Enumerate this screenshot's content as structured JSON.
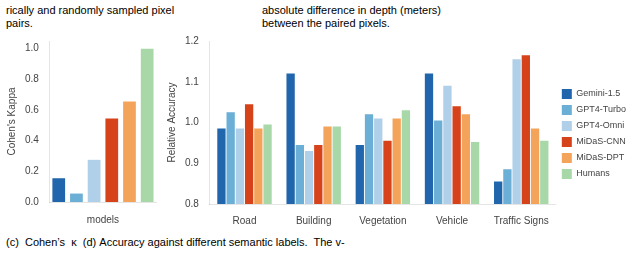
{
  "chart_data": [
    {
      "type": "bar",
      "categories": [
        "Gemini-1.5",
        "GPT4-Turbo",
        "GPT4-Omni",
        "MiDaS-CNN",
        "MiDaS-DPT",
        "Humans"
      ],
      "values": [
        0.155,
        0.055,
        0.275,
        0.545,
        0.655,
        1.0
      ],
      "colors": [
        "#2166ac",
        "#6baed6",
        "#b0cfe8",
        "#d6431a",
        "#f4a45a",
        "#a8d8a8"
      ],
      "xlabel": "models",
      "ylabel": "Cohen's Kappa",
      "ylim": [
        0.0,
        1.05
      ],
      "yticks": [
        {
          "value": 0.0,
          "label": "0.0"
        },
        0.2,
        0.4,
        0.6,
        0.8,
        {
          "value": 1.0,
          "label": "1.0"
        }
      ],
      "tick_labels": "y",
      "grid": false
    },
    {
      "type": "bar",
      "categories": [
        "Road",
        "Building",
        "Vegetation",
        "Vehicle",
        "Traffic Signs"
      ],
      "series": [
        {
          "name": "Gemini-1.5",
          "color": "#2166ac",
          "values": [
            0.985,
            1.12,
            0.945,
            1.12,
            0.855
          ]
        },
        {
          "name": "GPT4-Turbo",
          "color": "#6baed6",
          "values": [
            1.025,
            0.945,
            1.02,
            1.005,
            0.885
          ]
        },
        {
          "name": "GPT4-Omni",
          "color": "#b0cfe8",
          "values": [
            0.985,
            0.93,
            1.01,
            1.09,
            1.155
          ]
        },
        {
          "name": "MiDaS-CNN",
          "color": "#d6431a",
          "values": [
            1.045,
            0.945,
            0.955,
            1.04,
            1.165
          ]
        },
        {
          "name": "MiDaS-DPT",
          "color": "#f4a45a",
          "values": [
            0.985,
            0.99,
            1.01,
            1.02,
            0.985
          ]
        },
        {
          "name": "Humans",
          "color": "#a8d8a8",
          "values": [
            0.995,
            0.99,
            1.03,
            0.952,
            0.955
          ]
        }
      ],
      "ylabel": "Relative Accuracy",
      "ylim": [
        0.8,
        1.2
      ],
      "yticks": [
        0.8,
        0.9,
        {
          "value": 1.0,
          "label": "1.0"
        },
        1.1,
        1.2
      ],
      "grid": false,
      "legend": "right"
    }
  ],
  "annotations": [
    "rically and randomly sampled pixel\npairs.",
    "absolute difference in depth (meters)\nbetween the paired pixels.",
    "(c)  Cohen’s  κ  (d) Accuracy against different semantic labels.  The v-"
  ]
}
